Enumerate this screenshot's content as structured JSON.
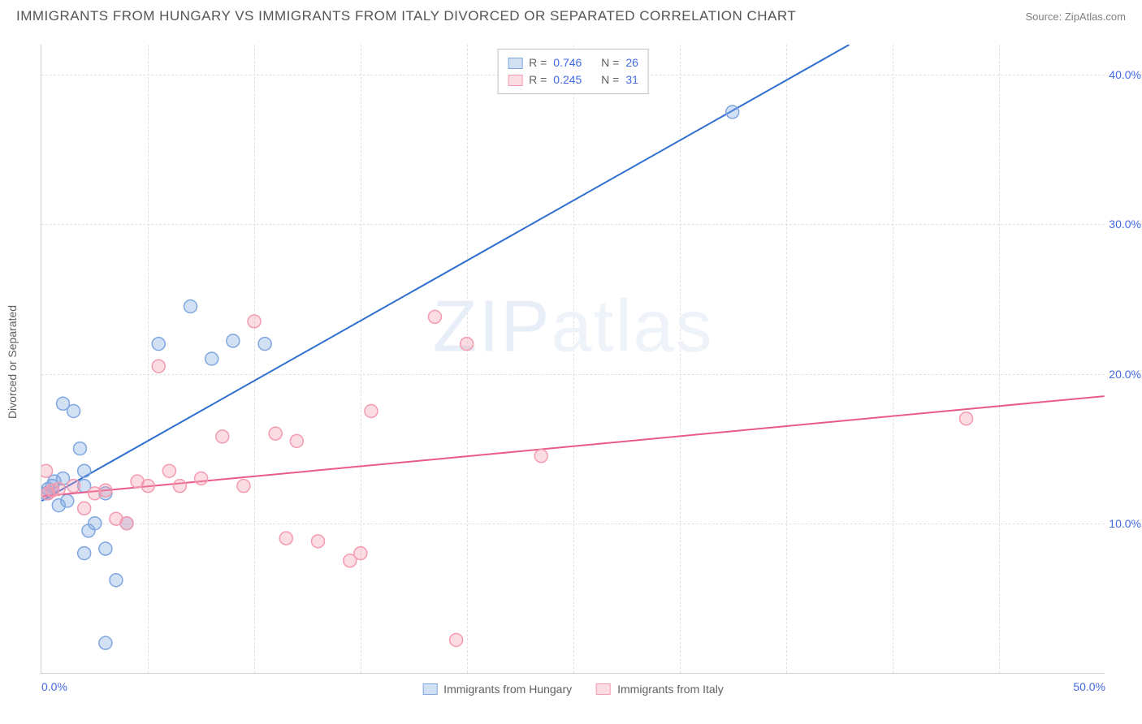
{
  "header": {
    "title": "IMMIGRANTS FROM HUNGARY VS IMMIGRANTS FROM ITALY DIVORCED OR SEPARATED CORRELATION CHART",
    "source_label": "Source: ",
    "source_value": "ZipAtlas.com"
  },
  "chart": {
    "type": "scatter",
    "yaxis_title": "Divorced or Separated",
    "xlim": [
      0,
      50
    ],
    "ylim": [
      0,
      42
    ],
    "xtick_labels": [
      "0.0%",
      "50.0%"
    ],
    "xtick_positions": [
      0,
      50
    ],
    "xtick_minor": [
      5,
      10,
      15,
      20,
      25,
      30,
      35,
      40,
      45
    ],
    "ytick_labels": [
      "10.0%",
      "20.0%",
      "30.0%",
      "40.0%"
    ],
    "ytick_positions": [
      10,
      20,
      30,
      40
    ],
    "grid_color": "#e0e0e0",
    "background_color": "#ffffff",
    "axis_color": "#d0d0d0",
    "label_color": "#4169e1",
    "label_fontsize": 14,
    "watermark_text_bold": "ZIP",
    "watermark_text_thin": "atlas",
    "watermark_color": "#e8eef7",
    "series": [
      {
        "name": "Immigrants from Hungary",
        "marker_color": "#7ea6e0",
        "marker_fill": "rgba(126,166,224,0.35)",
        "marker_radius": 8,
        "line_color": "#2f6fd0",
        "line_width": 2,
        "R": "0.746",
        "N": "26",
        "regression": {
          "x1": 0,
          "y1": 11.5,
          "x2": 38,
          "y2": 42
        },
        "points": [
          [
            0.2,
            12.0
          ],
          [
            0.3,
            12.3
          ],
          [
            0.5,
            12.5
          ],
          [
            0.6,
            12.8
          ],
          [
            0.8,
            11.2
          ],
          [
            1.0,
            13.0
          ],
          [
            1.2,
            11.5
          ],
          [
            1.0,
            18.0
          ],
          [
            1.5,
            17.5
          ],
          [
            1.8,
            15.0
          ],
          [
            2.0,
            12.5
          ],
          [
            2.0,
            13.5
          ],
          [
            2.2,
            9.5
          ],
          [
            2.5,
            10.0
          ],
          [
            3.0,
            12.0
          ],
          [
            3.0,
            8.3
          ],
          [
            3.5,
            6.2
          ],
          [
            4.0,
            10.0
          ],
          [
            3.0,
            2.0
          ],
          [
            2.0,
            8.0
          ],
          [
            5.5,
            22.0
          ],
          [
            7.0,
            24.5
          ],
          [
            8.0,
            21.0
          ],
          [
            9.0,
            22.2
          ],
          [
            10.5,
            22.0
          ],
          [
            32.5,
            37.5
          ]
        ]
      },
      {
        "name": "Immigrants from Italy",
        "marker_color": "#f49ab0",
        "marker_fill": "rgba(244,154,176,0.35)",
        "marker_radius": 8,
        "line_color": "#e85a8a",
        "line_width": 2,
        "R": "0.245",
        "N": "31",
        "regression": {
          "x1": 0,
          "y1": 11.8,
          "x2": 50,
          "y2": 18.5
        },
        "points": [
          [
            0.3,
            12.0
          ],
          [
            0.5,
            12.2
          ],
          [
            0.8,
            12.3
          ],
          [
            1.5,
            12.5
          ],
          [
            2.0,
            11.0
          ],
          [
            2.5,
            12.0
          ],
          [
            3.0,
            12.2
          ],
          [
            3.5,
            10.3
          ],
          [
            4.0,
            10.0
          ],
          [
            4.5,
            12.8
          ],
          [
            5.0,
            12.5
          ],
          [
            5.5,
            20.5
          ],
          [
            6.0,
            13.5
          ],
          [
            6.5,
            12.5
          ],
          [
            7.5,
            13.0
          ],
          [
            8.5,
            15.8
          ],
          [
            9.5,
            12.5
          ],
          [
            10.0,
            23.5
          ],
          [
            11.0,
            16.0
          ],
          [
            11.5,
            9.0
          ],
          [
            12.0,
            15.5
          ],
          [
            13.0,
            8.8
          ],
          [
            14.5,
            7.5
          ],
          [
            15.0,
            8.0
          ],
          [
            15.5,
            17.5
          ],
          [
            18.5,
            23.8
          ],
          [
            20.0,
            22.0
          ],
          [
            19.5,
            2.2
          ],
          [
            23.5,
            14.5
          ],
          [
            43.5,
            17.0
          ],
          [
            0.2,
            13.5
          ]
        ]
      }
    ],
    "legend_top": {
      "r_label": "R =",
      "n_label": "N ="
    },
    "legend_bottom": [
      {
        "label": "Immigrants from Hungary",
        "color_fill": "rgba(126,166,224,0.35)",
        "color_border": "#7ea6e0"
      },
      {
        "label": "Immigrants from Italy",
        "color_fill": "rgba(244,154,176,0.35)",
        "color_border": "#f49ab0"
      }
    ]
  }
}
